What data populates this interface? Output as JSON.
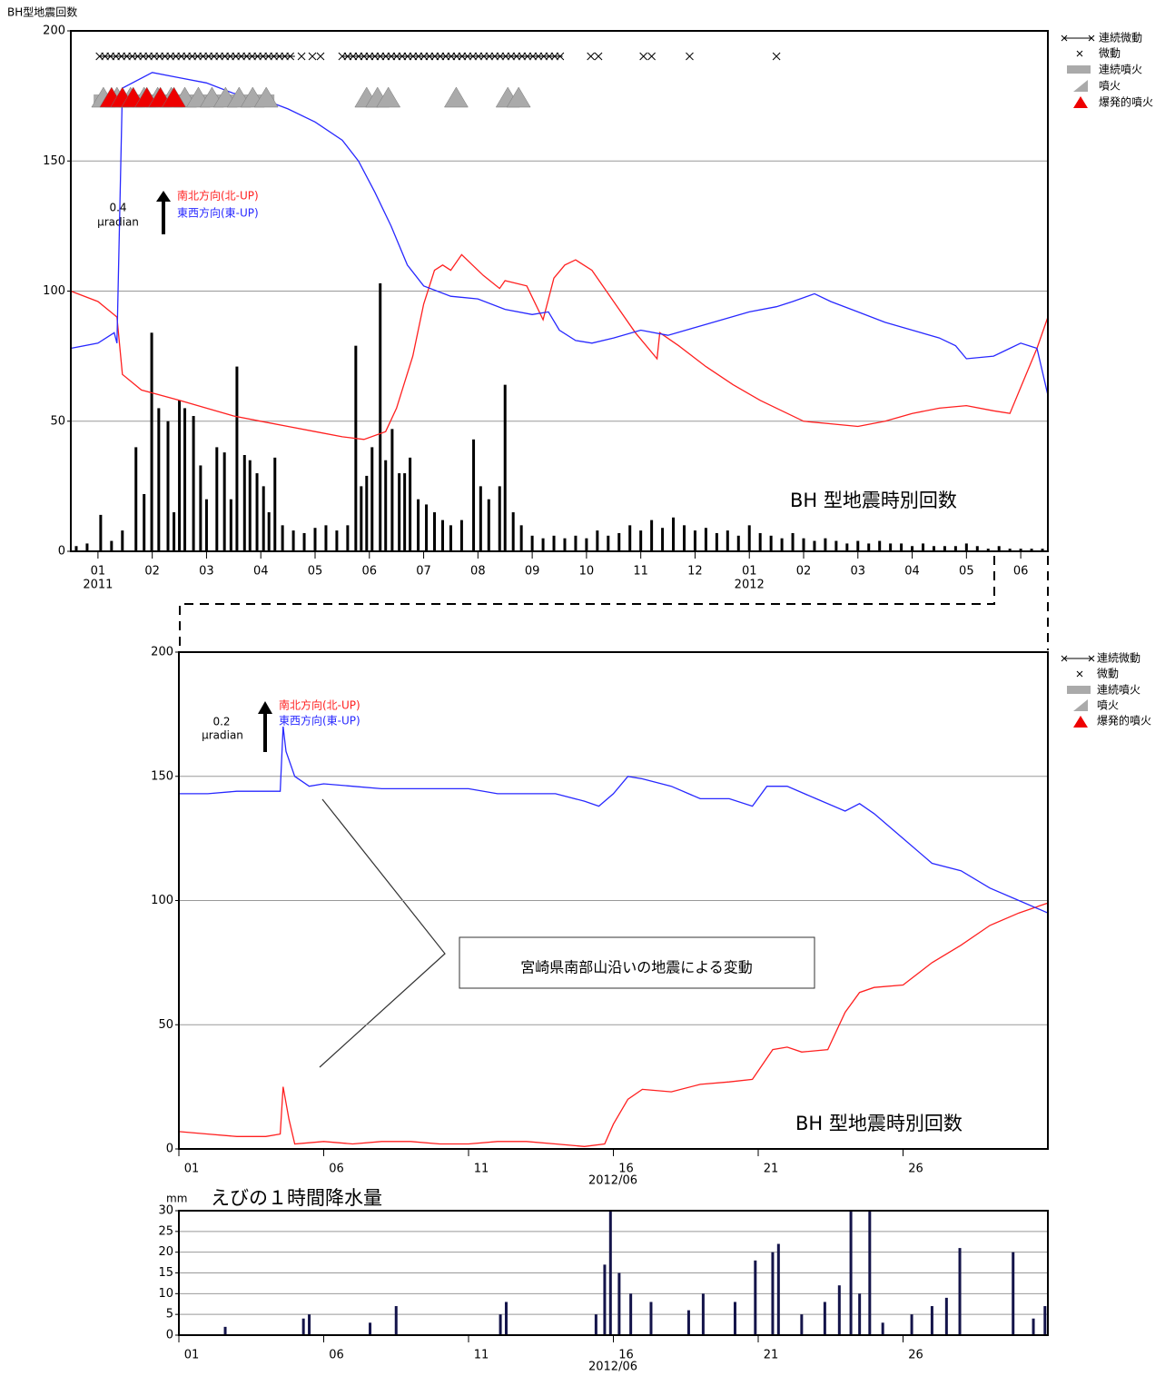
{
  "chart_data": [
    {
      "type": "line",
      "ylabel": "BH型地震回数",
      "xlim": [
        0,
        18
      ],
      "ylim": [
        0,
        200
      ],
      "yticks": [
        0,
        50,
        100,
        150,
        200
      ],
      "grid": true,
      "xticks": [
        {
          "value": 0.5,
          "label": "01"
        },
        {
          "value": 1.5,
          "label": "02"
        },
        {
          "value": 2.5,
          "label": "03"
        },
        {
          "value": 3.5,
          "label": "04"
        },
        {
          "value": 4.5,
          "label": "05"
        },
        {
          "value": 5.5,
          "label": "06"
        },
        {
          "value": 6.5,
          "label": "07"
        },
        {
          "value": 7.5,
          "label": "08"
        },
        {
          "value": 8.5,
          "label": "09"
        },
        {
          "value": 9.5,
          "label": "10"
        },
        {
          "value": 10.5,
          "label": "11"
        },
        {
          "value": 11.5,
          "label": "12"
        },
        {
          "value": 12.5,
          "label": "01"
        },
        {
          "value": 13.5,
          "label": "02"
        },
        {
          "value": 14.5,
          "label": "03"
        },
        {
          "value": 15.5,
          "label": "04"
        },
        {
          "value": 16.5,
          "label": "05"
        },
        {
          "value": 17.5,
          "label": "06"
        }
      ],
      "year_labels": [
        {
          "value": 0.5,
          "label": "2011"
        },
        {
          "value": 12.5,
          "label": "2012"
        }
      ],
      "scale_value": "0.4",
      "scale_unit": "μradian",
      "bar_label": "BH 型地震時別回数",
      "legend": [
        "連続微動",
        "微動",
        "連続噴火",
        "噴火",
        "爆発的噴火"
      ],
      "series": [
        {
          "name": "南北方向(北-UP)",
          "color": "#ff2020",
          "x": [
            0,
            0.5,
            0.85,
            0.95,
            1.3,
            2,
            2.5,
            3,
            3.5,
            4,
            4.5,
            5,
            5.4,
            5.8,
            6,
            6.3,
            6.5,
            6.7,
            6.85,
            7,
            7.2,
            7.6,
            7.9,
            8,
            8.4,
            8.7,
            8.9,
            9.1,
            9.3,
            9.6,
            10,
            10.4,
            10.8,
            10.85,
            11.2,
            11.7,
            12.2,
            12.7,
            13,
            13.5,
            14,
            14.5,
            15,
            15.5,
            16,
            16.5,
            17,
            17.3,
            17.5,
            17.8,
            18
          ],
          "values": [
            100,
            96,
            90,
            68,
            62,
            58,
            55,
            52,
            50,
            48,
            46,
            44,
            43,
            46,
            55,
            75,
            95,
            108,
            110,
            108,
            114,
            106,
            101,
            104,
            102,
            89,
            105,
            110,
            112,
            108,
            96,
            84,
            74,
            84,
            79,
            71,
            64,
            58,
            55,
            50,
            49,
            48,
            50,
            53,
            55,
            56,
            54,
            53,
            63,
            78,
            90
          ]
        },
        {
          "name": "東西方向(東-UP)",
          "color": "#2828ff",
          "x": [
            0,
            0.5,
            0.8,
            0.85,
            0.95,
            1.5,
            2,
            2.5,
            3,
            3.5,
            4,
            4.5,
            5,
            5.3,
            5.6,
            5.9,
            6.2,
            6.5,
            7,
            7.5,
            8,
            8.5,
            8.8,
            9,
            9.3,
            9.6,
            10,
            10.5,
            11,
            11.5,
            12,
            12.5,
            13,
            13.3,
            13.7,
            14,
            14.5,
            15,
            15.5,
            16,
            16.3,
            16.5,
            17,
            17.3,
            17.5,
            17.8,
            18
          ],
          "values": [
            78,
            80,
            84,
            80,
            178,
            184,
            182,
            180,
            176,
            174,
            170,
            165,
            158,
            150,
            138,
            125,
            110,
            102,
            98,
            97,
            93,
            91,
            92,
            85,
            81,
            80,
            82,
            85,
            83,
            86,
            89,
            92,
            94,
            96,
            99,
            96,
            92,
            88,
            85,
            82,
            79,
            74,
            75,
            78,
            80,
            78,
            60
          ]
        }
      ],
      "bars": {
        "color": "#000000",
        "x": [
          0.1,
          0.3,
          0.55,
          0.75,
          0.95,
          1.2,
          1.35,
          1.49,
          1.62,
          1.79,
          1.9,
          2.0,
          2.1,
          2.26,
          2.39,
          2.5,
          2.69,
          2.83,
          2.95,
          3.06,
          3.2,
          3.3,
          3.43,
          3.55,
          3.65,
          3.76,
          3.9,
          4.1,
          4.3,
          4.5,
          4.7,
          4.9,
          5.1,
          5.25,
          5.35,
          5.45,
          5.55,
          5.7,
          5.8,
          5.92,
          6.05,
          6.15,
          6.25,
          6.4,
          6.55,
          6.7,
          6.85,
          7.0,
          7.2,
          7.42,
          7.55,
          7.7,
          7.9,
          8.0,
          8.15,
          8.3,
          8.5,
          8.7,
          8.9,
          9.1,
          9.3,
          9.5,
          9.7,
          9.9,
          10.1,
          10.3,
          10.5,
          10.7,
          10.9,
          11.1,
          11.3,
          11.5,
          11.7,
          11.9,
          12.1,
          12.3,
          12.5,
          12.7,
          12.9,
          13.1,
          13.3,
          13.5,
          13.7,
          13.9,
          14.1,
          14.3,
          14.5,
          14.7,
          14.9,
          15.1,
          15.3,
          15.5,
          15.7,
          15.9,
          16.1,
          16.3,
          16.5,
          16.7,
          16.9,
          17.1,
          17.3,
          17.5,
          17.7,
          17.9
        ],
        "values": [
          2,
          3,
          14,
          4,
          8,
          40,
          22,
          84,
          55,
          50,
          15,
          58,
          55,
          52,
          33,
          20,
          40,
          38,
          20,
          71,
          37,
          35,
          30,
          25,
          15,
          36,
          10,
          8,
          7,
          9,
          10,
          8,
          10,
          79,
          25,
          29,
          40,
          103,
          35,
          47,
          30,
          30,
          36,
          20,
          18,
          15,
          12,
          10,
          12,
          43,
          25,
          20,
          25,
          64,
          15,
          10,
          6,
          5,
          6,
          5,
          6,
          5,
          8,
          6,
          7,
          10,
          8,
          12,
          9,
          13,
          10,
          8,
          9,
          7,
          8,
          6,
          10,
          7,
          6,
          5,
          7,
          5,
          4,
          5,
          4,
          3,
          4,
          3,
          4,
          3,
          3,
          2,
          3,
          2,
          2,
          2,
          3,
          2,
          1,
          2,
          1,
          1,
          1,
          1
        ]
      },
      "continuous_tremor": [
        [
          0.53,
          4.13
        ],
        [
          5.0,
          9.06
        ]
      ],
      "tremor_x": [
        4.25,
        4.45,
        4.6,
        9.58,
        9.72,
        10.55,
        10.7,
        11.4,
        13.0
      ],
      "continuous_eruption": [
        [
          0.42,
          3.75
        ]
      ],
      "eruption_x": [
        0.6,
        0.85,
        1.1,
        1.35,
        1.6,
        1.85,
        2.1,
        2.35,
        2.6,
        2.85,
        3.1,
        3.35,
        3.6,
        5.45,
        5.65,
        5.85,
        7.1,
        8.05,
        8.25
      ],
      "explosive_x": [
        0.75,
        0.95,
        1.15,
        1.4,
        1.65,
        1.9
      ]
    },
    {
      "type": "line",
      "xlim": [
        1,
        31
      ],
      "ylim": [
        0,
        200
      ],
      "yticks": [
        0,
        50,
        100,
        150,
        200
      ],
      "grid": true,
      "xticks": [
        {
          "value": 1,
          "label": "01"
        },
        {
          "value": 6,
          "label": "06"
        },
        {
          "value": 11,
          "label": "11"
        },
        {
          "value": 16,
          "label": "16"
        },
        {
          "value": 21,
          "label": "21"
        },
        {
          "value": 26,
          "label": "26"
        }
      ],
      "xlabel": "2012/06",
      "scale_value": "0.2",
      "scale_unit": "μradian",
      "bar_label": "BH 型地震時別回数",
      "annotation": "宮崎県南部山沿いの地震による変動",
      "legend": [
        "連続微動",
        "微動",
        "連続噴火",
        "噴火",
        "爆発的噴火"
      ],
      "series": [
        {
          "name": "南北方向(北-UP)",
          "color": "#ff2020",
          "x": [
            1,
            2,
            3,
            4,
            4.5,
            4.6,
            4.8,
            5,
            6,
            7,
            8,
            9,
            10,
            11,
            12,
            13,
            14,
            15,
            15.7,
            16,
            16.5,
            17,
            18,
            19,
            20,
            20.8,
            21.5,
            22,
            22.5,
            23.4,
            24,
            24.5,
            25,
            26,
            27,
            28,
            29,
            30,
            31
          ],
          "values": [
            7,
            6,
            5,
            5,
            6,
            25,
            12,
            2,
            3,
            2,
            3,
            3,
            2,
            2,
            3,
            3,
            2,
            1,
            2,
            10,
            20,
            24,
            23,
            26,
            27,
            28,
            40,
            41,
            39,
            40,
            55,
            63,
            65,
            66,
            75,
            82,
            90,
            95,
            99
          ]
        },
        {
          "name": "東西方向(東-UP)",
          "color": "#2828ff",
          "x": [
            1,
            2,
            3,
            4,
            4.5,
            4.6,
            4.7,
            5,
            5.5,
            6,
            7,
            8,
            9,
            10,
            11,
            12,
            13,
            14,
            15,
            15.5,
            16,
            16.5,
            17,
            18,
            19,
            20,
            20.8,
            21.3,
            22,
            23,
            24,
            24.5,
            25,
            26,
            27,
            28,
            29,
            30,
            31
          ],
          "values": [
            143,
            143,
            144,
            144,
            144,
            170,
            160,
            150,
            146,
            147,
            146,
            145,
            145,
            145,
            145,
            143,
            143,
            143,
            140,
            138,
            143,
            150,
            149,
            146,
            141,
            141,
            138,
            146,
            146,
            141,
            136,
            139,
            135,
            125,
            115,
            112,
            105,
            100,
            95
          ]
        }
      ]
    },
    {
      "type": "bar",
      "title": "えびの１時間降水量",
      "ylabel": "mm",
      "xlim": [
        1,
        31
      ],
      "ylim": [
        0,
        30
      ],
      "yticks": [
        0,
        5,
        10,
        15,
        20,
        25,
        30
      ],
      "grid": true,
      "xticks": [
        {
          "value": 1,
          "label": "01"
        },
        {
          "value": 6,
          "label": "06"
        },
        {
          "value": 11,
          "label": "11"
        },
        {
          "value": 16,
          "label": "16"
        },
        {
          "value": 21,
          "label": "21"
        },
        {
          "value": 26,
          "label": "26"
        }
      ],
      "xlabel": "2012/06",
      "color": "#14144a",
      "x": [
        2.6,
        5.3,
        5.5,
        7.6,
        8.5,
        12.1,
        12.3,
        15.4,
        15.7,
        15.9,
        16.2,
        16.6,
        17.3,
        18.6,
        19.1,
        20.2,
        20.9,
        21.5,
        21.7,
        22.5,
        23.3,
        23.8,
        24.2,
        24.5,
        24.85,
        25.3,
        26.3,
        27.0,
        27.5,
        27.96,
        29.8,
        30.5,
        30.9
      ],
      "values": [
        2,
        4,
        5,
        3,
        7,
        5,
        8,
        5,
        17,
        30,
        15,
        10,
        8,
        6,
        10,
        8,
        18,
        20,
        22,
        5,
        8,
        12,
        30,
        10,
        30,
        3,
        5,
        7,
        9,
        21,
        20,
        4,
        7
      ]
    }
  ]
}
